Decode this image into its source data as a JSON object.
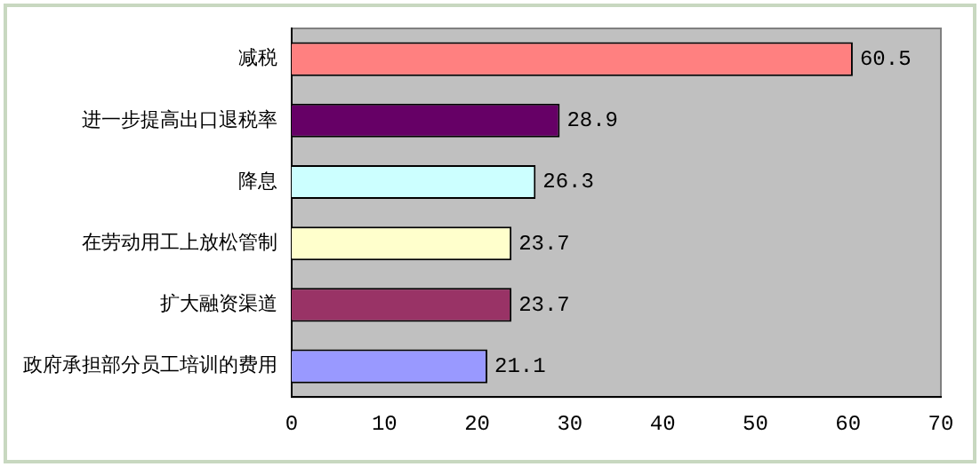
{
  "chart_data": {
    "type": "bar",
    "orientation": "horizontal",
    "categories": [
      "减税",
      "进一步提高出口退税率",
      "降息",
      "在劳动用工上放松管制",
      "扩大融资渠道",
      "政府承担部分员工培训的费用"
    ],
    "values": [
      60.5,
      28.9,
      26.3,
      23.7,
      23.7,
      21.1
    ],
    "colors": [
      "#ff8080",
      "#660066",
      "#ccffff",
      "#ffffcc",
      "#993366",
      "#9999ff"
    ],
    "xlim": [
      0,
      70
    ],
    "xticks": [
      0,
      10,
      20,
      30,
      40,
      50,
      60,
      70
    ],
    "grid": false,
    "legend": false,
    "data_labels": true
  }
}
